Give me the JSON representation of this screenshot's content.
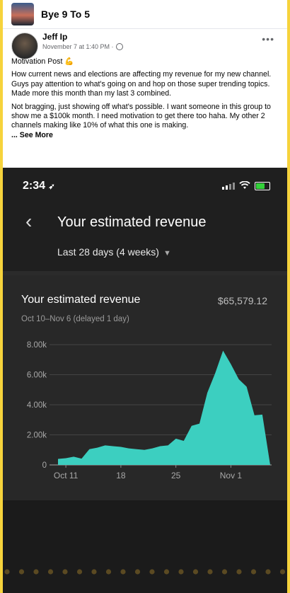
{
  "group": {
    "name": "Bye 9 To 5",
    "icon": "group-cover-thumbnail"
  },
  "post": {
    "author": "Jeff Ip",
    "time": "November 7 at 1:40 PM ·",
    "more_icon": "•••",
    "title_line": "Motivation Post",
    "title_emoji": "💪",
    "paragraph1": "How current news and elections are affecting my revenue for my new channel. Guys pay attention to what's going on and hop on those super trending topics. Made more this month than my last 3 combined.",
    "paragraph2": "Not bragging, just showing off what's possible. I want someone in this group to show me a $100k month. I need motivation to get there too haha. My other 2 channels making like 10% of what this one is making.",
    "see_more": "... See More"
  },
  "phone": {
    "time": "2:34",
    "nav_title": "Your estimated revenue",
    "range": "Last 28 days (4 weeks)",
    "card_title": "Your estimated revenue",
    "card_total": "$65,579.12",
    "card_sub": "Oct 10–Nov 6 (delayed 1 day)"
  },
  "colors": {
    "accent": "#3ccfc0",
    "frame": "#f6d33c",
    "battery": "#33d23a"
  },
  "chart_data": {
    "type": "area",
    "x": [
      1,
      2,
      3,
      4,
      5,
      6,
      7,
      8,
      9,
      10,
      11,
      12,
      13,
      14,
      15,
      16,
      17,
      18,
      19,
      20,
      21,
      22,
      23,
      24,
      25,
      26,
      27,
      28
    ],
    "y": [
      400,
      450,
      550,
      420,
      1050,
      1150,
      1300,
      1250,
      1200,
      1100,
      1050,
      1000,
      1100,
      1250,
      1300,
      1750,
      1600,
      2600,
      2750,
      4800,
      6100,
      7600,
      6700,
      5700,
      5200,
      3300,
      3350,
      0
    ],
    "yticks": [
      "0",
      "2.00k",
      "4.00k",
      "6.00k",
      "8.00k"
    ],
    "xticks": [
      "Oct 11",
      "18",
      "25",
      "Nov 1"
    ],
    "ylim": [
      0,
      8000
    ]
  }
}
